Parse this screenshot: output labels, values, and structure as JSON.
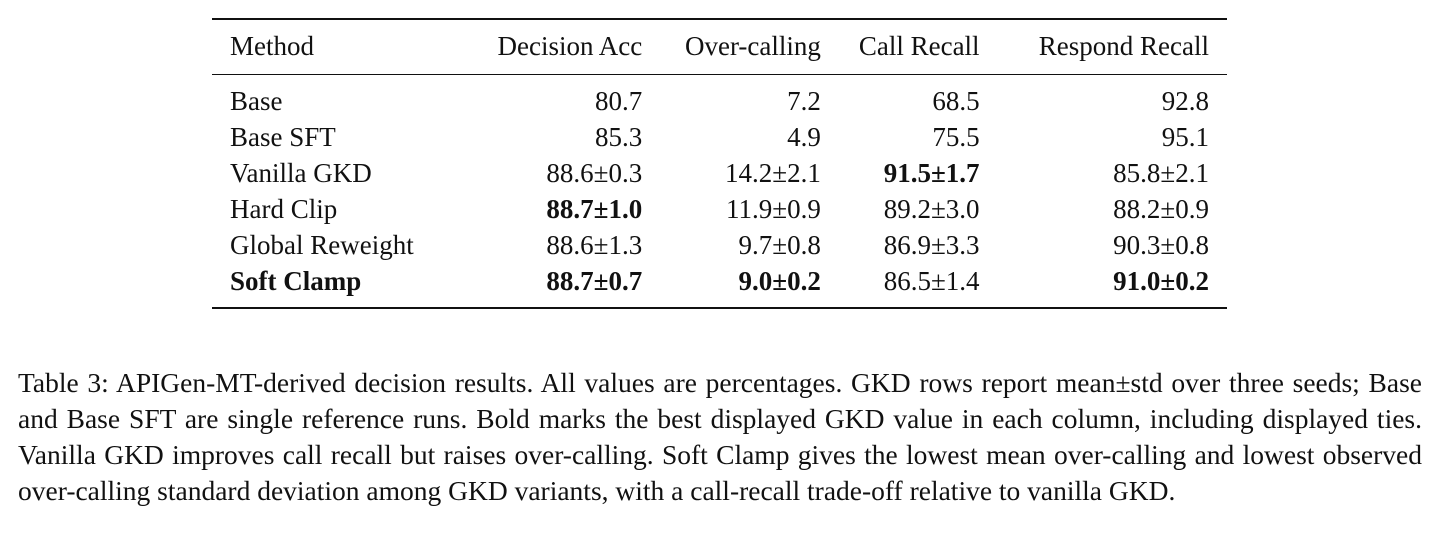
{
  "table": {
    "headers": [
      "Method",
      "Decision Acc",
      "Over-calling",
      "Call Recall",
      "Respond Recall"
    ],
    "rows": [
      {
        "method": "Base",
        "method_bold": false,
        "cells": [
          {
            "text": "80.7",
            "bold": false
          },
          {
            "text": "7.2",
            "bold": false
          },
          {
            "text": "68.5",
            "bold": false
          },
          {
            "text": "92.8",
            "bold": false
          }
        ]
      },
      {
        "method": "Base SFT",
        "method_bold": false,
        "cells": [
          {
            "text": "85.3",
            "bold": false
          },
          {
            "text": "4.9",
            "bold": false
          },
          {
            "text": "75.5",
            "bold": false
          },
          {
            "text": "95.1",
            "bold": false
          }
        ]
      },
      {
        "method": "Vanilla GKD",
        "method_bold": false,
        "cells": [
          {
            "text": "88.6±0.3",
            "bold": false
          },
          {
            "text": "14.2±2.1",
            "bold": false
          },
          {
            "text": "91.5±1.7",
            "bold": true
          },
          {
            "text": "85.8±2.1",
            "bold": false
          }
        ]
      },
      {
        "method": "Hard Clip",
        "method_bold": false,
        "cells": [
          {
            "text": "88.7±1.0",
            "bold": true
          },
          {
            "text": "11.9±0.9",
            "bold": false
          },
          {
            "text": "89.2±3.0",
            "bold": false
          },
          {
            "text": "88.2±0.9",
            "bold": false
          }
        ]
      },
      {
        "method": "Global Reweight",
        "method_bold": false,
        "cells": [
          {
            "text": "88.6±1.3",
            "bold": false
          },
          {
            "text": "9.7±0.8",
            "bold": false
          },
          {
            "text": "86.9±3.3",
            "bold": false
          },
          {
            "text": "90.3±0.8",
            "bold": false
          }
        ]
      },
      {
        "method": "Soft Clamp",
        "method_bold": true,
        "cells": [
          {
            "text": "88.7±0.7",
            "bold": true
          },
          {
            "text": "9.0±0.2",
            "bold": true
          },
          {
            "text": "86.5±1.4",
            "bold": false
          },
          {
            "text": "91.0±0.2",
            "bold": true
          }
        ]
      }
    ]
  },
  "caption": "Table 3: APIGen-MT-derived decision results. All values are percentages. GKD rows report mean±std over three seeds; Base and Base SFT are single reference runs. Bold marks the best displayed GKD value in each column, including displayed ties. Vanilla GKD improves call recall but raises over-calling. Soft Clamp gives the lowest mean over-calling and lowest observed over-calling standard deviation among GKD variants, with a call-recall trade-off relative to vanilla GKD."
}
